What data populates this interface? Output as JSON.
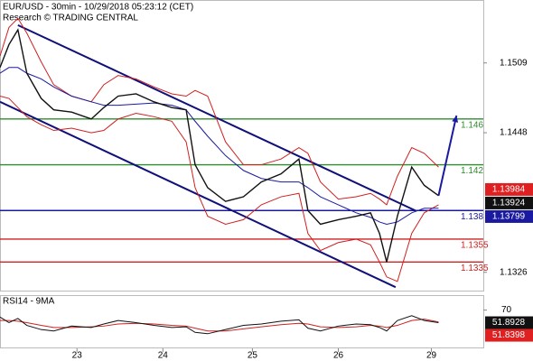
{
  "chart_data": {
    "type": "line",
    "title": "EUR/USD - 30min - 10/29/2018 05:23:12 (CET)",
    "subtitle": "Research © TRADING CENTRAL",
    "x": [
      0,
      5,
      10,
      15,
      23,
      30,
      40,
      51,
      58,
      66,
      76,
      86,
      96,
      104,
      109,
      116,
      126,
      136,
      146,
      157,
      167,
      172,
      179,
      189,
      199,
      207,
      212,
      216,
      222,
      230,
      237,
      245
    ],
    "xlim": [
      0,
      270
    ],
    "xticks": [
      {
        "value": 43,
        "label": "23"
      },
      {
        "value": 91,
        "label": "24"
      },
      {
        "value": 141,
        "label": "25"
      },
      {
        "value": 189,
        "label": "26"
      },
      {
        "value": 241,
        "label": "29"
      }
    ],
    "ylim": [
      1.131,
      1.1564
    ],
    "yticks": [
      1.1509,
      1.1448,
      1.1326
    ],
    "series": [
      {
        "color": "#d02020",
        "values": [
          1.1515,
          1.154,
          1.1548,
          1.1535,
          1.151,
          1.149,
          1.148,
          1.1475,
          1.149,
          1.1498,
          1.1495,
          1.1488,
          1.1482,
          1.148,
          1.1485,
          1.148,
          1.144,
          1.142,
          1.142,
          1.1425,
          1.1435,
          1.143,
          1.1405,
          1.139,
          1.1392,
          1.1395,
          1.139,
          1.1385,
          1.141,
          1.1435,
          1.143,
          1.1418
        ]
      },
      {
        "color": "#d02020",
        "values": [
          1.148,
          1.1478,
          1.147,
          1.1462,
          1.1455,
          1.145,
          1.1452,
          1.1448,
          1.145,
          1.146,
          1.1465,
          1.1462,
          1.1458,
          1.144,
          1.14,
          1.1375,
          1.1368,
          1.1372,
          1.1385,
          1.1392,
          1.1395,
          1.136,
          1.1345,
          1.1352,
          1.1355,
          1.135,
          1.1335,
          1.1322,
          1.1318,
          1.136,
          1.1378,
          1.1385
        ]
      },
      {
        "color": "#1a1aa0",
        "values": [
          1.15,
          1.1505,
          1.1505,
          1.15,
          1.1495,
          1.1488,
          1.148,
          1.1475,
          1.1472,
          1.1472,
          1.1473,
          1.1474,
          1.1472,
          1.1468,
          1.1458,
          1.1445,
          1.1428,
          1.1415,
          1.1408,
          1.1405,
          1.1405,
          1.14,
          1.1392,
          1.1385,
          1.1378,
          1.1374,
          1.137,
          1.1368,
          1.137,
          1.1378,
          1.1382,
          1.1382
        ]
      },
      {
        "color": "#111111",
        "values": [
          1.1505,
          1.1525,
          1.1538,
          1.15,
          1.1478,
          1.1468,
          1.1466,
          1.146,
          1.147,
          1.148,
          1.1482,
          1.1475,
          1.147,
          1.1468,
          1.142,
          1.14,
          1.1388,
          1.1392,
          1.1405,
          1.1412,
          1.1425,
          1.138,
          1.1368,
          1.1372,
          1.1375,
          1.1378,
          1.136,
          1.1335,
          1.1375,
          1.1418,
          1.1402,
          1.1393
        ]
      }
    ],
    "channels": [
      {
        "color": "#10107a",
        "x": [
          10,
          232
        ],
        "values": [
          1.1542,
          1.138
        ]
      },
      {
        "color": "#10107a",
        "x": [
          0,
          221
        ],
        "values": [
          1.1475,
          1.1313
        ]
      }
    ],
    "levels": [
      {
        "value": 1.146,
        "color": "#2e8b2e"
      },
      {
        "value": 1.142,
        "color": "#2e8b2e"
      },
      {
        "value": 1.138,
        "color": "#1a1aa0"
      },
      {
        "value": 1.1355,
        "color": "#d02020"
      },
      {
        "value": 1.1335,
        "color": "#d02020"
      }
    ],
    "arrow": {
      "color": "#1a1aa0",
      "x": [
        245,
        255
      ],
      "values": [
        1.1393,
        1.1463
      ]
    },
    "price_tags": [
      {
        "value": 1.13984,
        "color": "#e02020"
      },
      {
        "value": 1.13924,
        "color": "#111111"
      },
      {
        "value": 1.13799,
        "color": "#1a1aa0"
      }
    ],
    "rsi": {
      "title": "RSI14 - 9MA",
      "ylim": [
        15,
        85
      ],
      "yticks": [
        70
      ],
      "series": [
        {
          "color": "#d02020",
          "values": [
            55,
            55,
            54,
            52,
            48,
            45,
            45,
            46,
            47,
            50,
            51,
            50,
            48,
            47,
            44,
            40,
            40,
            43,
            46,
            49,
            51,
            50,
            46,
            45,
            46,
            48,
            47,
            45,
            48,
            55,
            57,
            53
          ]
        },
        {
          "color": "#111111",
          "values": [
            60,
            52,
            58,
            48,
            42,
            40,
            47,
            45,
            50,
            55,
            52,
            48,
            45,
            46,
            38,
            36,
            42,
            48,
            50,
            54,
            56,
            44,
            40,
            47,
            50,
            49,
            45,
            40,
            55,
            62,
            55,
            52
          ]
        }
      ],
      "tags": [
        {
          "value": 51.8928,
          "color": "#111111"
        },
        {
          "value": 51.8398,
          "color": "#e02020"
        }
      ]
    }
  }
}
